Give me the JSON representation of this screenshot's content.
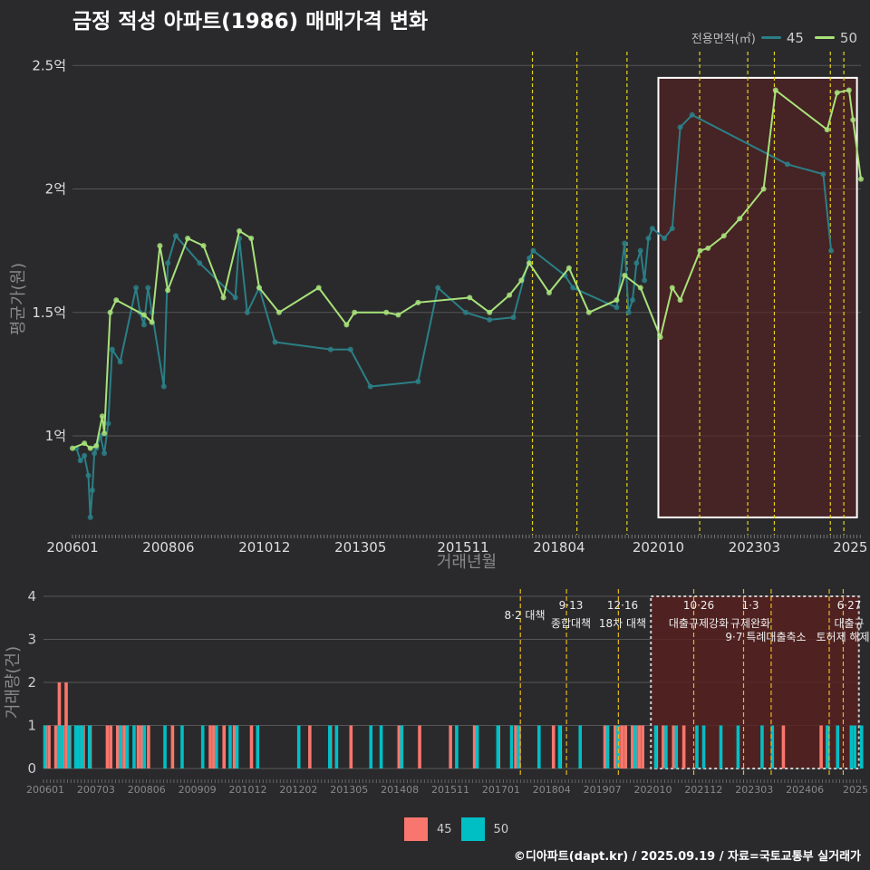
{
  "title": "금정 적성 아파트(1986) 매매가격 변화",
  "footer": "©디아파트(dapt.kr) / 2025.09.19 / 자료=국토교통부 실거래가",
  "colors": {
    "s45_line": "#2b7f86",
    "s50_line": "#a8e27a",
    "bar45": "#f8766d",
    "bar50": "#00bfc4",
    "vline": "#e6d21e",
    "grid": "#555555",
    "highlight": "#5a1f1f"
  },
  "chart_data": [
    {
      "type": "line",
      "title": "금정 적성 아파트(1986) 매매가격 변화",
      "xlabel": "거래년월",
      "ylabel": "평균가(원)",
      "legend_title": "전용면적(㎡)",
      "legend_position": "top-right",
      "x_range": [
        2006.0,
        2025.85
      ],
      "ylim": [
        0.6,
        2.6
      ],
      "yticks": [
        1.0,
        1.5,
        2.0,
        2.5
      ],
      "ytick_labels": [
        "1억",
        "1.5억",
        "2억",
        "2.5억"
      ],
      "xticks": [
        2006.0,
        2008.4167,
        2010.8333,
        2013.25,
        2015.8333,
        2018.25,
        2020.75,
        2023.1667,
        2025.5833
      ],
      "xtick_labels": [
        "200601",
        "200806",
        "201012",
        "201305",
        "201511",
        "201804",
        "202010",
        "202303",
        "2025"
      ],
      "policy_lines": [
        2017.58,
        2018.7,
        2019.96,
        2021.79,
        2023.0,
        2023.67,
        2025.08,
        2025.42
      ],
      "highlight_range": {
        "x": [
          2020.75,
          2025.75
        ],
        "y": [
          0.67,
          2.45
        ]
      },
      "series": [
        {
          "name": "45",
          "points": [
            [
              2006.1,
              0.95
            ],
            [
              2006.2,
              0.9
            ],
            [
              2006.3,
              0.92
            ],
            [
              2006.4,
              0.84
            ],
            [
              2006.45,
              0.67
            ],
            [
              2006.5,
              0.78
            ],
            [
              2006.55,
              0.93
            ],
            [
              2006.6,
              0.95
            ],
            [
              2006.7,
              1.0
            ],
            [
              2006.8,
              0.93
            ],
            [
              2006.9,
              1.05
            ],
            [
              2007.0,
              1.35
            ],
            [
              2007.2,
              1.3
            ],
            [
              2007.6,
              1.6
            ],
            [
              2007.7,
              1.5
            ],
            [
              2007.8,
              1.45
            ],
            [
              2007.9,
              1.6
            ],
            [
              2008.0,
              1.5
            ],
            [
              2008.3,
              1.2
            ],
            [
              2008.4,
              1.7
            ],
            [
              2008.6,
              1.81
            ],
            [
              2009.2,
              1.7
            ],
            [
              2010.1,
              1.56
            ],
            [
              2010.2,
              1.8
            ],
            [
              2010.4,
              1.5
            ],
            [
              2010.7,
              1.6
            ],
            [
              2011.1,
              1.38
            ],
            [
              2012.5,
              1.35
            ],
            [
              2013.0,
              1.35
            ],
            [
              2013.5,
              1.2
            ],
            [
              2014.7,
              1.22
            ],
            [
              2015.2,
              1.6
            ],
            [
              2015.9,
              1.5
            ],
            [
              2016.5,
              1.47
            ],
            [
              2017.1,
              1.48
            ],
            [
              2017.5,
              1.72
            ],
            [
              2017.6,
              1.75
            ],
            [
              2018.4,
              1.65
            ],
            [
              2018.6,
              1.6
            ],
            [
              2019.7,
              1.52
            ],
            [
              2019.9,
              1.78
            ],
            [
              2020.0,
              1.5
            ],
            [
              2020.1,
              1.55
            ],
            [
              2020.2,
              1.7
            ],
            [
              2020.3,
              1.75
            ],
            [
              2020.4,
              1.63
            ],
            [
              2020.5,
              1.8
            ],
            [
              2020.6,
              1.84
            ],
            [
              2020.9,
              1.8
            ],
            [
              2021.1,
              1.84
            ],
            [
              2021.3,
              2.25
            ],
            [
              2021.6,
              2.3
            ],
            [
              2024.0,
              2.1
            ],
            [
              2024.9,
              2.06
            ],
            [
              2025.1,
              1.75
            ]
          ]
        },
        {
          "name": "50",
          "points": [
            [
              2006.0,
              0.95
            ],
            [
              2006.3,
              0.97
            ],
            [
              2006.45,
              0.95
            ],
            [
              2006.6,
              0.96
            ],
            [
              2006.75,
              1.08
            ],
            [
              2006.8,
              1.01
            ],
            [
              2006.95,
              1.5
            ],
            [
              2007.1,
              1.55
            ],
            [
              2007.8,
              1.49
            ],
            [
              2008.0,
              1.46
            ],
            [
              2008.2,
              1.77
            ],
            [
              2008.4,
              1.59
            ],
            [
              2008.9,
              1.8
            ],
            [
              2009.3,
              1.77
            ],
            [
              2009.8,
              1.56
            ],
            [
              2010.2,
              1.83
            ],
            [
              2010.5,
              1.8
            ],
            [
              2010.7,
              1.6
            ],
            [
              2011.2,
              1.5
            ],
            [
              2012.2,
              1.6
            ],
            [
              2012.9,
              1.45
            ],
            [
              2013.1,
              1.5
            ],
            [
              2013.9,
              1.5
            ],
            [
              2014.2,
              1.49
            ],
            [
              2014.7,
              1.54
            ],
            [
              2016.0,
              1.56
            ],
            [
              2016.5,
              1.5
            ],
            [
              2017.0,
              1.57
            ],
            [
              2017.3,
              1.63
            ],
            [
              2017.5,
              1.7
            ],
            [
              2018.0,
              1.58
            ],
            [
              2018.5,
              1.68
            ],
            [
              2019.0,
              1.5
            ],
            [
              2019.7,
              1.55
            ],
            [
              2019.9,
              1.65
            ],
            [
              2020.3,
              1.6
            ],
            [
              2020.8,
              1.4
            ],
            [
              2021.1,
              1.6
            ],
            [
              2021.3,
              1.55
            ],
            [
              2021.8,
              1.75
            ],
            [
              2022.0,
              1.76
            ],
            [
              2022.4,
              1.81
            ],
            [
              2022.8,
              1.88
            ],
            [
              2023.4,
              2.0
            ],
            [
              2023.7,
              2.4
            ],
            [
              2025.0,
              2.24
            ],
            [
              2025.25,
              2.39
            ],
            [
              2025.55,
              2.4
            ],
            [
              2025.65,
              2.28
            ],
            [
              2025.85,
              2.04
            ]
          ]
        }
      ]
    },
    {
      "type": "bar",
      "xlabel": "",
      "ylabel": "거래량(건)",
      "ylim": [
        0,
        4
      ],
      "yticks": [
        0,
        1,
        2,
        3,
        4
      ],
      "xtick_labels": [
        "200601",
        "200703",
        "200806",
        "200909",
        "201012",
        "201202",
        "201305",
        "201408",
        "201511",
        "201701",
        "201804",
        "201907",
        "202010",
        "202112",
        "202303",
        "202406",
        "2025"
      ],
      "annotations": [
        {
          "date": "8·2",
          "text": "대책"
        },
        {
          "date": "9·13",
          "text": "종합대책"
        },
        {
          "date": "12·16",
          "text": "18차 대책"
        },
        {
          "date": "10·26",
          "text": "대출규제강화"
        },
        {
          "date": "1·3",
          "text": "규제완화"
        },
        {
          "date": "9·7",
          "text": "특례대출축소"
        },
        {
          "date": "",
          "text": "토허제 해제"
        },
        {
          "date": "6·27",
          "text": "대출규"
        }
      ],
      "series": [
        {
          "name": "45",
          "color": "#f8766d"
        },
        {
          "name": "50",
          "color": "#00bfc4"
        }
      ]
    }
  ]
}
